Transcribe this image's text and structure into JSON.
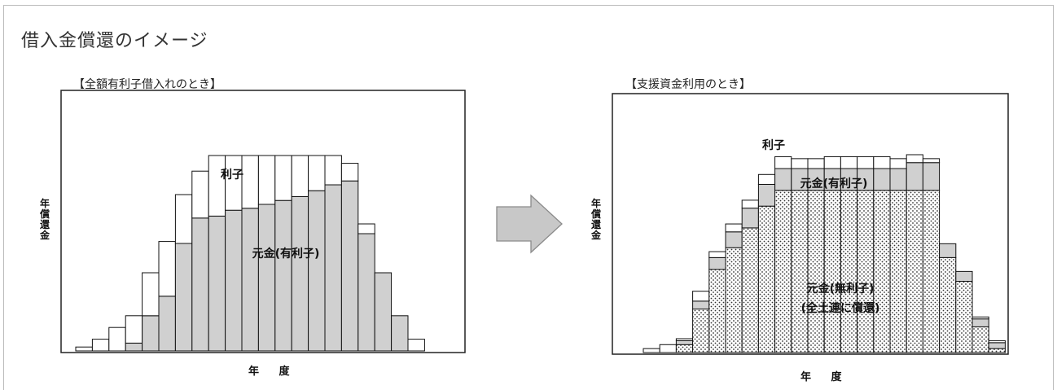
{
  "main_title": "借入金償還のイメージ",
  "colors": {
    "principal_interest_bearing": "#d0d0d0",
    "interest": "#ffffff",
    "principal_interest_free": "#ffffff",
    "arrow": "#c8c8c8",
    "border": "#222222"
  },
  "chart_data": [
    {
      "type": "bar",
      "stacked": true,
      "title": "【全額有利子借入れのとき】",
      "xlabel": "年 度",
      "ylabel": "年償還金",
      "grid": false,
      "ylim": [
        0,
        100
      ],
      "series": [
        {
          "name": "元金(有利子)",
          "fill": "solid",
          "values": [
            0,
            0,
            0,
            4,
            18,
            28,
            55,
            68,
            69,
            72,
            73,
            75,
            77,
            79,
            82,
            85,
            87,
            60,
            40,
            18,
            0
          ]
        },
        {
          "name": "利子",
          "fill": "none",
          "values": [
            2,
            6,
            12,
            14,
            22,
            28,
            25,
            24,
            31,
            28,
            27,
            25,
            23,
            21,
            18,
            15,
            9,
            5,
            0,
            0,
            6
          ]
        }
      ],
      "annotations": [
        "利子",
        "元金(有利子)"
      ]
    },
    {
      "type": "bar",
      "stacked": true,
      "title": "【支援資金利用のとき】",
      "xlabel": "年 度",
      "ylabel": "年償還金",
      "grid": false,
      "ylim": [
        0,
        100
      ],
      "series": [
        {
          "name": "元金(無利子)(全土連に償還)",
          "fill": "dots",
          "values": [
            0,
            0,
            4,
            22,
            42,
            53,
            63,
            74,
            82,
            82,
            82,
            82,
            82,
            82,
            82,
            82,
            82,
            82,
            48,
            36,
            13,
            2
          ]
        },
        {
          "name": "元金(有利子)",
          "fill": "solid",
          "values": [
            0,
            0,
            2,
            4,
            6,
            8,
            10,
            11,
            11,
            11,
            11,
            11,
            11,
            11,
            11,
            11,
            14,
            14,
            7,
            5,
            4,
            3
          ]
        },
        {
          "name": "利子",
          "fill": "none",
          "values": [
            2,
            4,
            1,
            5,
            3,
            4,
            4,
            5,
            6,
            5,
            5,
            6,
            6,
            6,
            6,
            5,
            4,
            2,
            0,
            0,
            1,
            1
          ]
        }
      ],
      "annotations": [
        "利子",
        "元金(有利子)",
        "元金(無利子)",
        "(全土連に償還)"
      ]
    }
  ]
}
